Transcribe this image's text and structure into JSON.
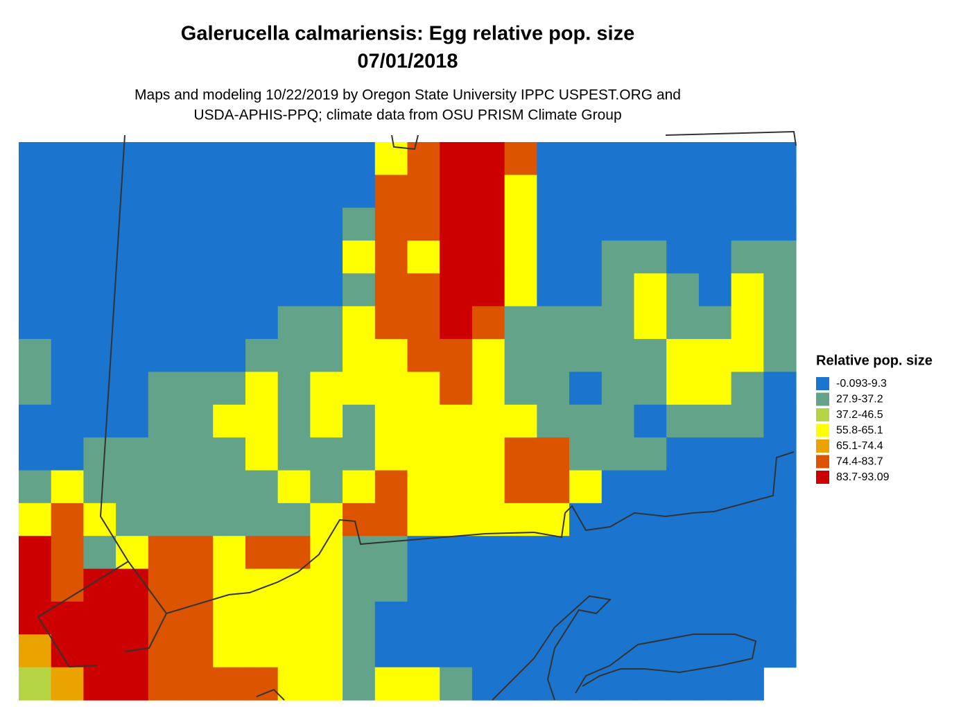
{
  "title": [
    "Galerucella calmariensis: Egg relative pop. size",
    "07/01/2018"
  ],
  "subtitle": [
    "Maps and modeling 10/22/2019 by Oregon State University IPPC USPEST.ORG and",
    "USDA-APHIS-PPQ; climate data from OSU PRISM Climate Group"
  ],
  "legend": {
    "title": "Relative pop. size",
    "items": [
      {
        "label": "-0.093-9.3",
        "color": "#1b75cf"
      },
      {
        "label": "27.9-37.2",
        "color": "#63a38a"
      },
      {
        "label": "37.2-46.5",
        "color": "#b5d444"
      },
      {
        "label": "55.8-65.1",
        "color": "#ffff00"
      },
      {
        "label": "65.1-74.4",
        "color": "#eba300"
      },
      {
        "label": "74.4-83.7",
        "color": "#dc5400"
      },
      {
        "label": "83.7-93.09",
        "color": "#cc0000"
      }
    ]
  },
  "map": {
    "grid": [
      [
        0,
        0,
        0,
        0,
        0,
        0,
        0,
        0,
        0,
        0,
        0,
        3,
        5,
        6,
        6,
        5,
        0,
        0,
        0,
        0,
        0,
        0,
        0,
        0
      ],
      [
        0,
        0,
        0,
        0,
        0,
        0,
        0,
        0,
        0,
        0,
        0,
        5,
        5,
        6,
        6,
        3,
        0,
        0,
        0,
        0,
        0,
        0,
        0,
        0
      ],
      [
        0,
        0,
        0,
        0,
        0,
        0,
        0,
        0,
        0,
        0,
        1,
        5,
        5,
        6,
        6,
        3,
        0,
        0,
        0,
        0,
        0,
        0,
        0,
        0
      ],
      [
        0,
        0,
        0,
        0,
        0,
        0,
        0,
        0,
        0,
        0,
        3,
        5,
        3,
        6,
        6,
        3,
        0,
        0,
        1,
        1,
        0,
        0,
        1,
        1
      ],
      [
        0,
        0,
        0,
        0,
        0,
        0,
        0,
        0,
        0,
        0,
        1,
        5,
        5,
        6,
        6,
        3,
        0,
        0,
        1,
        3,
        1,
        0,
        3,
        1
      ],
      [
        0,
        0,
        0,
        0,
        0,
        0,
        0,
        0,
        1,
        1,
        3,
        5,
        5,
        6,
        5,
        1,
        1,
        1,
        1,
        3,
        1,
        1,
        3,
        1
      ],
      [
        1,
        0,
        0,
        0,
        0,
        0,
        0,
        1,
        1,
        1,
        3,
        3,
        5,
        5,
        3,
        1,
        1,
        1,
        1,
        1,
        3,
        3,
        3,
        1
      ],
      [
        1,
        0,
        0,
        0,
        1,
        1,
        1,
        3,
        1,
        3,
        3,
        3,
        3,
        5,
        3,
        1,
        1,
        0,
        1,
        1,
        3,
        3,
        1,
        0
      ],
      [
        0,
        0,
        0,
        0,
        1,
        1,
        3,
        3,
        1,
        3,
        1,
        3,
        3,
        3,
        3,
        3,
        1,
        1,
        1,
        0,
        1,
        1,
        1,
        0
      ],
      [
        0,
        0,
        1,
        1,
        1,
        1,
        1,
        3,
        1,
        1,
        1,
        3,
        3,
        3,
        3,
        5,
        5,
        1,
        1,
        1,
        0,
        0,
        0,
        0
      ],
      [
        1,
        3,
        1,
        1,
        1,
        1,
        1,
        1,
        3,
        1,
        3,
        5,
        3,
        3,
        3,
        5,
        5,
        3,
        0,
        0,
        0,
        0,
        0,
        0
      ],
      [
        3,
        5,
        3,
        1,
        1,
        1,
        1,
        1,
        1,
        3,
        5,
        5,
        3,
        3,
        3,
        3,
        3,
        0,
        0,
        0,
        0,
        0,
        0,
        0
      ],
      [
        6,
        5,
        1,
        3,
        5,
        5,
        3,
        5,
        5,
        3,
        1,
        1,
        0,
        0,
        0,
        0,
        0,
        0,
        0,
        0,
        0,
        0,
        0,
        0
      ],
      [
        6,
        5,
        6,
        6,
        5,
        5,
        3,
        3,
        3,
        3,
        1,
        1,
        0,
        0,
        0,
        0,
        0,
        0,
        0,
        0,
        0,
        0,
        0,
        0
      ],
      [
        6,
        6,
        6,
        6,
        5,
        5,
        3,
        3,
        3,
        3,
        1,
        0,
        0,
        0,
        0,
        0,
        0,
        0,
        0,
        0,
        0,
        0,
        0,
        0
      ],
      [
        4,
        6,
        6,
        6,
        5,
        5,
        3,
        3,
        3,
        3,
        1,
        0,
        0,
        0,
        0,
        0,
        0,
        0,
        0,
        0,
        0,
        0,
        0,
        0
      ],
      [
        2,
        4,
        6,
        6,
        5,
        5,
        5,
        5,
        3,
        3,
        1,
        3,
        3,
        1,
        0,
        0,
        0,
        0,
        0,
        0,
        0,
        0,
        0,
        null
      ]
    ]
  }
}
